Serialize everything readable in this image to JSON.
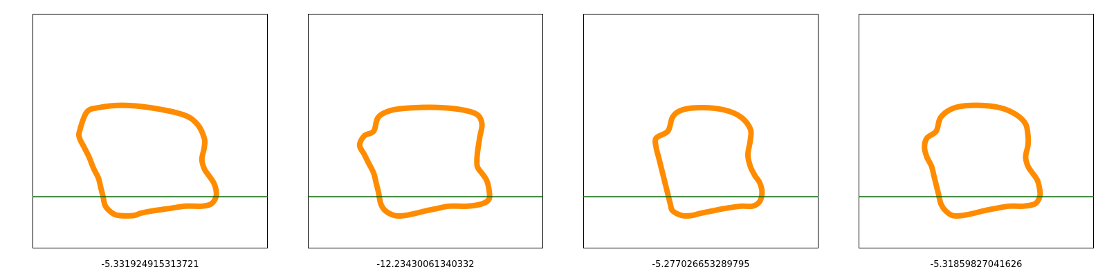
{
  "chart_data": [
    {
      "type": "line",
      "title": "",
      "xlabel": "-5.331924915313721",
      "ylabel": "",
      "xlim": [
        0,
        1
      ],
      "ylim": [
        0,
        1
      ],
      "grid": false,
      "series": [
        {
          "name": "shape-outline",
          "color": "#ff8c00",
          "closed": true,
          "points": [
            [
              0.2,
              0.5
            ],
            [
              0.23,
              0.58
            ],
            [
              0.28,
              0.6
            ],
            [
              0.38,
              0.61
            ],
            [
              0.5,
              0.6
            ],
            [
              0.64,
              0.57
            ],
            [
              0.7,
              0.53
            ],
            [
              0.73,
              0.47
            ],
            [
              0.73,
              0.43
            ],
            [
              0.72,
              0.38
            ],
            [
              0.73,
              0.34
            ],
            [
              0.75,
              0.31
            ],
            [
              0.77,
              0.28
            ],
            [
              0.78,
              0.25
            ],
            [
              0.78,
              0.22
            ],
            [
              0.76,
              0.19
            ],
            [
              0.72,
              0.18
            ],
            [
              0.65,
              0.18
            ],
            [
              0.58,
              0.17
            ],
            [
              0.51,
              0.16
            ],
            [
              0.46,
              0.15
            ],
            [
              0.43,
              0.14
            ],
            [
              0.37,
              0.14
            ],
            [
              0.34,
              0.15
            ],
            [
              0.31,
              0.18
            ],
            [
              0.3,
              0.22
            ],
            [
              0.29,
              0.26
            ],
            [
              0.28,
              0.3
            ],
            [
              0.26,
              0.34
            ],
            [
              0.24,
              0.39
            ],
            [
              0.22,
              0.43
            ],
            [
              0.2,
              0.47
            ]
          ]
        },
        {
          "name": "reference-line",
          "color": "#006400",
          "closed": false,
          "points": [
            [
              0,
              0.22
            ],
            [
              1,
              0.22
            ]
          ]
        }
      ]
    },
    {
      "type": "line",
      "title": "",
      "xlabel": "-12.23430061340332",
      "ylabel": "",
      "xlim": [
        0,
        1
      ],
      "ylim": [
        0,
        1
      ],
      "grid": false,
      "series": [
        {
          "name": "shape-outline",
          "color": "#ff8c00",
          "closed": true,
          "points": [
            [
              0.28,
              0.5
            ],
            [
              0.3,
              0.56
            ],
            [
              0.36,
              0.59
            ],
            [
              0.46,
              0.6
            ],
            [
              0.57,
              0.6
            ],
            [
              0.66,
              0.59
            ],
            [
              0.72,
              0.57
            ],
            [
              0.74,
              0.53
            ],
            [
              0.73,
              0.47
            ],
            [
              0.72,
              0.4
            ],
            [
              0.72,
              0.35
            ],
            [
              0.74,
              0.32
            ],
            [
              0.76,
              0.29
            ],
            [
              0.77,
              0.25
            ],
            [
              0.77,
              0.21
            ],
            [
              0.74,
              0.19
            ],
            [
              0.68,
              0.18
            ],
            [
              0.6,
              0.18
            ],
            [
              0.55,
              0.17
            ],
            [
              0.5,
              0.16
            ],
            [
              0.46,
              0.15
            ],
            [
              0.41,
              0.14
            ],
            [
              0.37,
              0.14
            ],
            [
              0.33,
              0.16
            ],
            [
              0.31,
              0.19
            ],
            [
              0.3,
              0.24
            ],
            [
              0.29,
              0.28
            ],
            [
              0.28,
              0.32
            ],
            [
              0.26,
              0.36
            ],
            [
              0.24,
              0.4
            ],
            [
              0.22,
              0.44
            ],
            [
              0.24,
              0.48
            ]
          ]
        },
        {
          "name": "reference-line",
          "color": "#006400",
          "closed": false,
          "points": [
            [
              0,
              0.22
            ],
            [
              1,
              0.22
            ]
          ]
        }
      ]
    },
    {
      "type": "line",
      "title": "",
      "xlabel": "-5.277026653289795",
      "ylabel": "",
      "xlim": [
        0,
        1
      ],
      "ylim": [
        0,
        1
      ],
      "grid": false,
      "series": [
        {
          "name": "shape-outline",
          "color": "#ff8c00",
          "closed": true,
          "points": [
            [
              0.36,
              0.5
            ],
            [
              0.38,
              0.56
            ],
            [
              0.42,
              0.59
            ],
            [
              0.5,
              0.6
            ],
            [
              0.6,
              0.59
            ],
            [
              0.67,
              0.56
            ],
            [
              0.71,
              0.51
            ],
            [
              0.71,
              0.46
            ],
            [
              0.7,
              0.4
            ],
            [
              0.71,
              0.35
            ],
            [
              0.73,
              0.31
            ],
            [
              0.75,
              0.28
            ],
            [
              0.76,
              0.24
            ],
            [
              0.75,
              0.2
            ],
            [
              0.72,
              0.18
            ],
            [
              0.67,
              0.18
            ],
            [
              0.6,
              0.17
            ],
            [
              0.55,
              0.16
            ],
            [
              0.5,
              0.15
            ],
            [
              0.46,
              0.14
            ],
            [
              0.42,
              0.14
            ],
            [
              0.38,
              0.16
            ],
            [
              0.37,
              0.19
            ],
            [
              0.36,
              0.23
            ],
            [
              0.35,
              0.27
            ],
            [
              0.34,
              0.31
            ],
            [
              0.33,
              0.35
            ],
            [
              0.32,
              0.39
            ],
            [
              0.31,
              0.43
            ],
            [
              0.31,
              0.47
            ]
          ]
        },
        {
          "name": "reference-line",
          "color": "#006400",
          "closed": false,
          "points": [
            [
              0,
              0.22
            ],
            [
              1,
              0.22
            ]
          ]
        }
      ]
    },
    {
      "type": "line",
      "title": "",
      "xlabel": "-5.31859827041626",
      "ylabel": "",
      "xlim": [
        0,
        1
      ],
      "ylim": [
        0,
        1
      ],
      "grid": false,
      "series": [
        {
          "name": "shape-outline",
          "color": "#ff8c00",
          "closed": true,
          "points": [
            [
              0.33,
              0.5
            ],
            [
              0.35,
              0.56
            ],
            [
              0.41,
              0.6
            ],
            [
              0.5,
              0.61
            ],
            [
              0.6,
              0.6
            ],
            [
              0.67,
              0.57
            ],
            [
              0.71,
              0.53
            ],
            [
              0.72,
              0.48
            ],
            [
              0.72,
              0.44
            ],
            [
              0.71,
              0.39
            ],
            [
              0.72,
              0.35
            ],
            [
              0.74,
              0.32
            ],
            [
              0.76,
              0.29
            ],
            [
              0.77,
              0.25
            ],
            [
              0.77,
              0.22
            ],
            [
              0.75,
              0.19
            ],
            [
              0.7,
              0.18
            ],
            [
              0.64,
              0.18
            ],
            [
              0.58,
              0.17
            ],
            [
              0.53,
              0.16
            ],
            [
              0.49,
              0.15
            ],
            [
              0.44,
              0.14
            ],
            [
              0.4,
              0.14
            ],
            [
              0.37,
              0.16
            ],
            [
              0.35,
              0.19
            ],
            [
              0.34,
              0.23
            ],
            [
              0.33,
              0.27
            ],
            [
              0.32,
              0.31
            ],
            [
              0.31,
              0.35
            ],
            [
              0.29,
              0.39
            ],
            [
              0.28,
              0.43
            ],
            [
              0.29,
              0.47
            ]
          ]
        },
        {
          "name": "reference-line",
          "color": "#006400",
          "closed": false,
          "points": [
            [
              0,
              0.22
            ],
            [
              1,
              0.22
            ]
          ]
        }
      ]
    }
  ]
}
